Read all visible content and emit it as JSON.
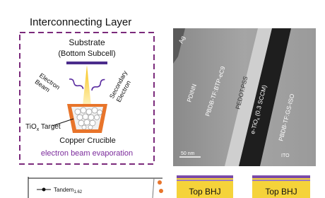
{
  "panel_a": {
    "title": "Interconnecting Layer",
    "substrate": "Substrate",
    "subcell": "(Bottom Subcell)",
    "beam": [
      "Electron",
      "Beam"
    ],
    "secondary": [
      "Secondary",
      "Electron"
    ],
    "target": {
      "main": "TiO",
      "sub": "x",
      "rest": " Target"
    },
    "crucible": "Copper Crucible",
    "method": "electron beam evaporation"
  },
  "panel_b": {
    "labels": {
      "ag": "Ag",
      "pdinn": "PDINN",
      "donor": "PBDB-TF:BTP-eC9",
      "pedot": "PEDOT:PSS",
      "tiox": {
        "pre": "e-TiO",
        "sub": "x",
        "post": " (0.3 SCCM)"
      },
      "gs": "PBDB-TF:GS-ISO",
      "ito": "ITO"
    },
    "scale": "50 nm"
  },
  "panel_c": {
    "legend": {
      "main": "Tandem",
      "sub": "1.62"
    }
  },
  "panel_d": {
    "boxes": [
      "Top BHJ",
      "Top BHJ"
    ]
  }
}
